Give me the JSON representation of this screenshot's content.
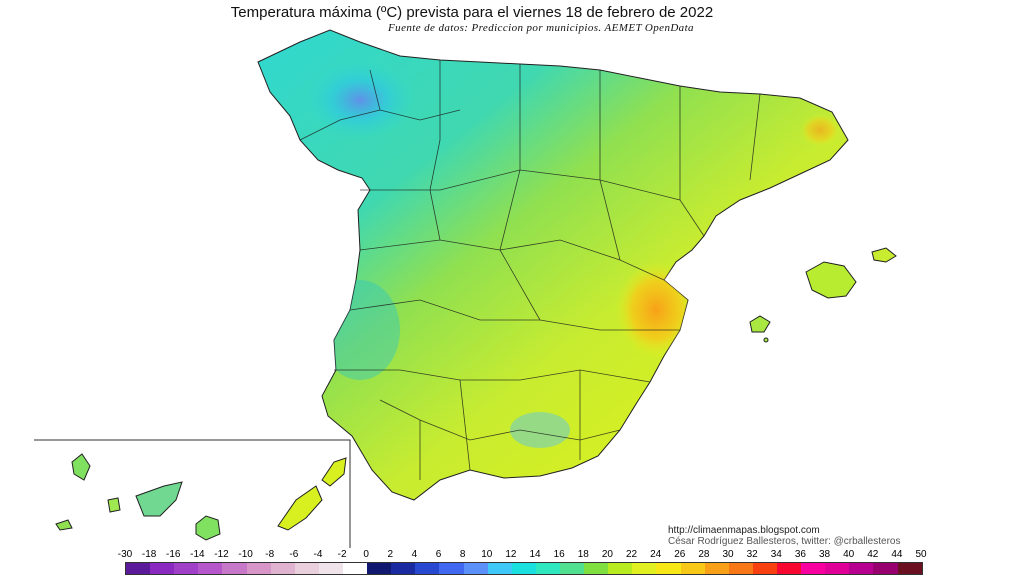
{
  "header": {
    "title": "Temperatura máxima (ºC) prevista para el viernes 18 de febrero de 2022",
    "subtitle": "Fuente de datos: Prediccion por municipios. AEMET OpenData"
  },
  "credits": {
    "url": "http://climaenmapas.blogspot.com",
    "author": "César Rodríguez Ballesteros, twitter: @crballesteros"
  },
  "legend": {
    "unit": "ºC",
    "labels": [
      "-30",
      "-18",
      "-16",
      "-14",
      "-12",
      "-10",
      "-8",
      "-6",
      "-4",
      "-2",
      "0",
      "2",
      "4",
      "6",
      "8",
      "10",
      "12",
      "14",
      "16",
      "18",
      "20",
      "22",
      "24",
      "26",
      "28",
      "30",
      "32",
      "34",
      "36",
      "38",
      "40",
      "42",
      "44",
      "50"
    ],
    "colors": [
      "#5a1a9a",
      "#8a2ac0",
      "#a040c8",
      "#b658cc",
      "#c878c8",
      "#d896c8",
      "#e0b4d0",
      "#ead0dc",
      "#f0e4ea",
      "#ffffff",
      "#101870",
      "#1a2aa0",
      "#2848d0",
      "#4068f0",
      "#5a90f8",
      "#40c8f8",
      "#1ae0e0",
      "#30e8c0",
      "#50e090",
      "#80e040",
      "#b8ec20",
      "#e0f020",
      "#f8e818",
      "#f8c818",
      "#f8a018",
      "#f87818",
      "#f84010",
      "#f80830",
      "#f800a0",
      "#e00098",
      "#b80090",
      "#980070",
      "#6a1020"
    ]
  },
  "map": {
    "regions": [
      "peninsula",
      "balearic-islands",
      "canary-islands"
    ]
  }
}
